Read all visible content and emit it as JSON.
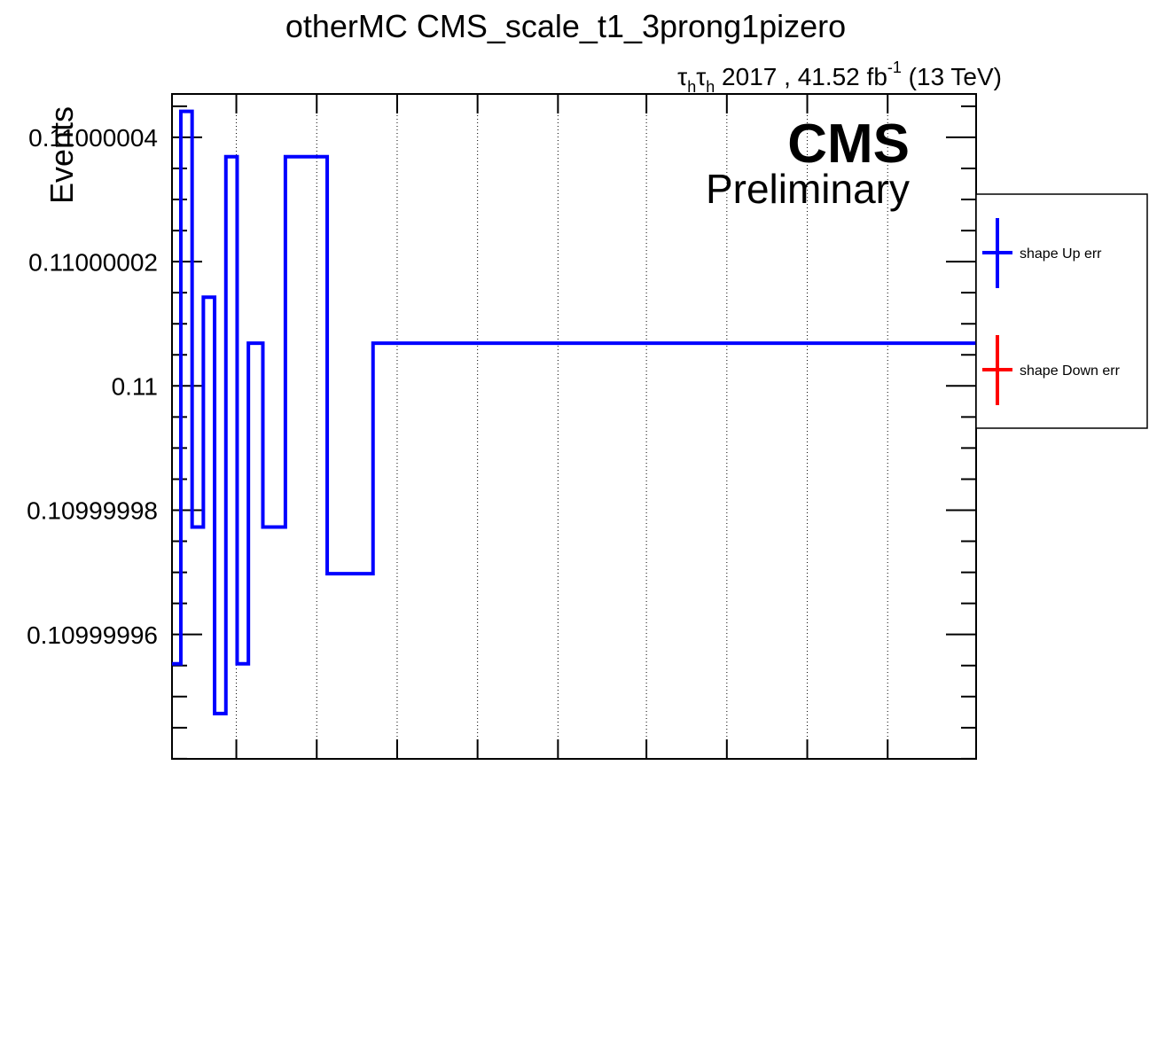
{
  "chart_data": {
    "type": "line",
    "title": "otherMC CMS_scale_t1_3prong1pizero",
    "lumi": {
      "tau1": "τ",
      "sub1": "h",
      "tau2": "τ",
      "sub2": "h",
      "rest": " 2017 , 41.52 fb",
      "sup": "-1",
      "energy": " (13 TeV)"
    },
    "cms_label": "CMS",
    "preliminary_label": "Preliminary",
    "ylabel": "Events",
    "xlabel": "",
    "ylim": [
      0.10999994,
      0.110000047
    ],
    "yticks": [
      {
        "value": 0.10999996,
        "label": "0.10999996"
      },
      {
        "value": 0.10999998,
        "label": "0.10999998"
      },
      {
        "value": 0.11,
        "label": "0.11"
      },
      {
        "value": 0.11000002,
        "label": "0.11000002"
      },
      {
        "value": 0.11000004,
        "label": "0.11000004"
      }
    ],
    "grid": {
      "x": true,
      "y": false
    },
    "legend": {
      "placement": "right",
      "entries": [
        {
          "label": "shape Up err",
          "color": "#0000ff"
        },
        {
          "label": "shape Down err",
          "color": "#ff0000"
        }
      ]
    },
    "series": [
      {
        "color": "#0000ff",
        "edges": [
          0,
          0.11,
          0.25,
          0.39,
          0.53,
          0.67,
          0.81,
          0.95,
          1.13,
          1.41,
          1.93,
          2.5,
          10
        ],
        "values": [
          0.1099999553,
          0.1100000442,
          0.1099999773,
          0.1100000143,
          0.1099999473,
          0.1100000369,
          0.1099999553,
          0.1100000069,
          0.1099999773,
          0.1100000369,
          0.1099999698,
          0.1100000069
        ]
      }
    ],
    "xlim": [
      0,
      10
    ],
    "xgrid_positions": [
      0.8,
      1.8,
      2.8,
      3.8,
      4.8,
      5.9,
      6.9,
      7.9,
      8.9
    ]
  }
}
